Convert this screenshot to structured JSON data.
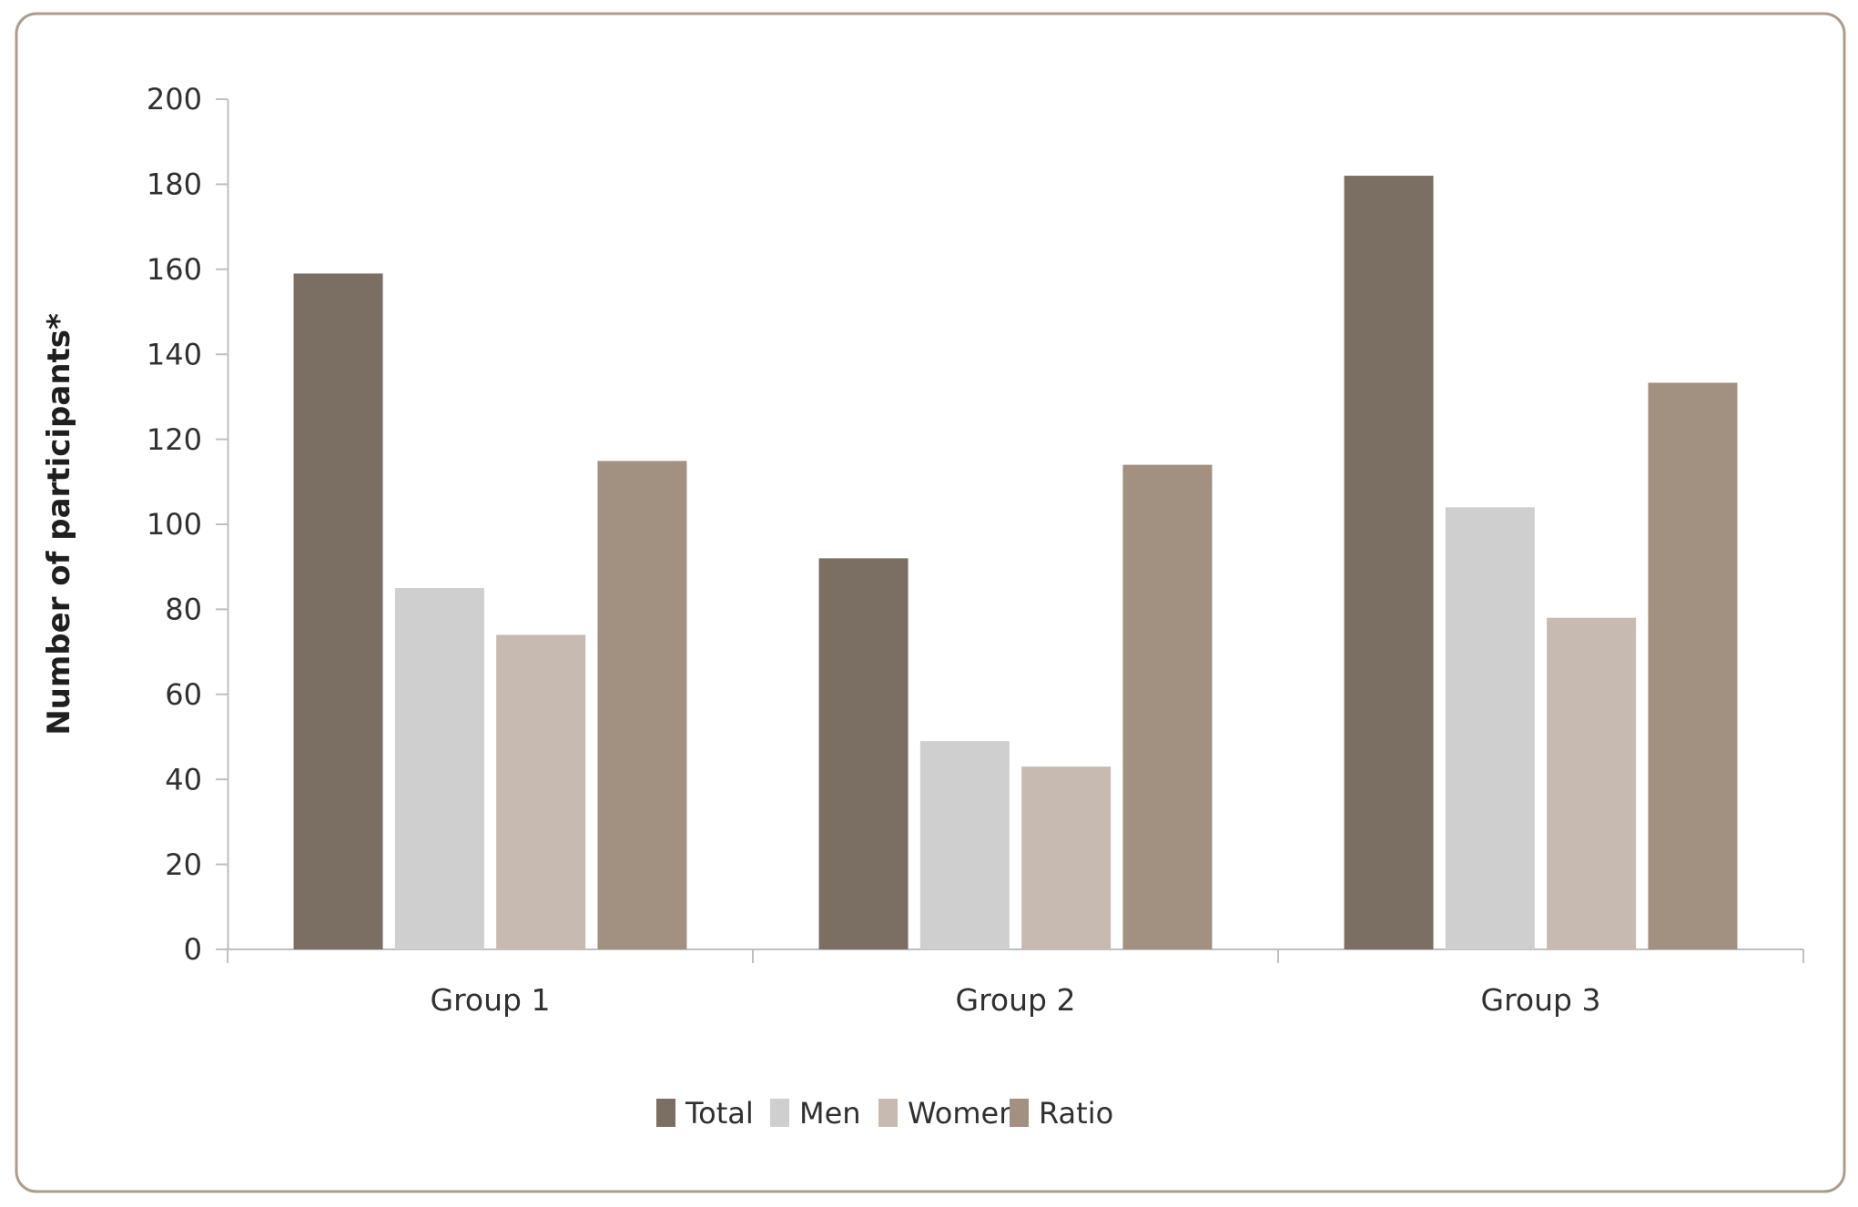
{
  "figure": {
    "background": "#ffffff",
    "border_color": "#ac9c8b",
    "axis_color": "#c0bfbf",
    "text_color": "#303030",
    "title_color": "#1f1f1f"
  },
  "chart_data": {
    "type": "bar",
    "title": "",
    "categories": [
      "Group 1",
      "Group 2",
      "Group 3"
    ],
    "series": [
      {
        "name": "Total",
        "color": "#7a6f62",
        "values": [
          159,
          92,
          182
        ]
      },
      {
        "name": "Men",
        "color": "#cfcfcf",
        "values": [
          85,
          49,
          104
        ]
      },
      {
        "name": "Women",
        "color": "#c7bbb1",
        "values": [
          74,
          43,
          78
        ]
      },
      {
        "name": "Ratio",
        "color": "#a29080",
        "values": [
          114.9,
          114,
          133.3
        ]
      }
    ],
    "xlabel": "",
    "ylabel": "Number of participants*",
    "ylim": [
      0,
      200
    ],
    "ytick_step": 20,
    "grid": false,
    "legend_position": "bottom",
    "legend": [
      "Total",
      "Men",
      "Women",
      "Ratio"
    ]
  }
}
